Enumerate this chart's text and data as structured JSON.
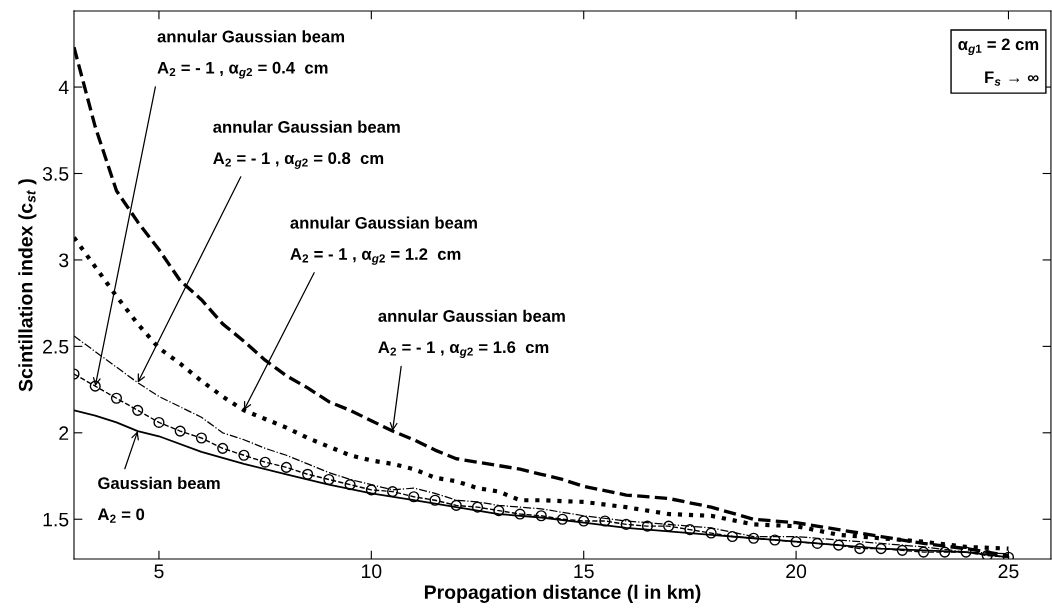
{
  "chart_data": {
    "type": "line",
    "xlabel": "Propagation distance (l in km)",
    "ylabel": "Scintillation index (c$_{st}$ )",
    "xlim": [
      3,
      26
    ],
    "ylim": [
      1.27,
      4.44
    ],
    "xticks": [
      5,
      10,
      15,
      20,
      25
    ],
    "yticks": [
      1.5,
      2,
      2.5,
      3,
      3.5,
      4
    ],
    "grid": false,
    "series": [
      {
        "color": "#000000",
        "line_style": "solid",
        "marker": "none",
        "x": [
          3,
          3.5,
          4,
          4.5,
          5,
          6,
          7,
          8,
          9,
          10,
          11,
          12,
          13,
          14,
          15,
          16,
          17,
          18,
          19,
          20,
          21,
          22,
          23,
          24,
          25
        ],
        "values": [
          2.13,
          2.1,
          2.06,
          2.01,
          1.98,
          1.89,
          1.82,
          1.76,
          1.7,
          1.65,
          1.61,
          1.57,
          1.53,
          1.51,
          1.48,
          1.45,
          1.43,
          1.41,
          1.39,
          1.37,
          1.35,
          1.33,
          1.32,
          1.31,
          1.28
        ]
      },
      {
        "color": "#000000",
        "line_style": "dashed",
        "marker": "circle",
        "x": [
          3,
          3.5,
          4,
          4.5,
          5,
          5.5,
          6,
          6.5,
          7,
          7.5,
          8,
          8.5,
          9,
          9.5,
          10,
          10.5,
          11,
          11.5,
          12,
          12.5,
          13,
          13.5,
          14,
          14.5,
          15,
          15.5,
          16,
          16.5,
          17,
          17.5,
          18,
          18.5,
          19,
          19.5,
          20,
          20.5,
          21,
          21.5,
          22,
          22.5,
          23,
          23.5,
          24,
          24.5,
          25
        ],
        "values": [
          2.34,
          2.27,
          2.2,
          2.13,
          2.06,
          2.01,
          1.97,
          1.91,
          1.87,
          1.83,
          1.8,
          1.76,
          1.73,
          1.7,
          1.67,
          1.66,
          1.63,
          1.61,
          1.58,
          1.57,
          1.55,
          1.53,
          1.52,
          1.5,
          1.49,
          1.49,
          1.47,
          1.46,
          1.46,
          1.44,
          1.42,
          1.4,
          1.39,
          1.38,
          1.37,
          1.36,
          1.35,
          1.33,
          1.33,
          1.32,
          1.31,
          1.31,
          1.31,
          1.29,
          1.28
        ]
      },
      {
        "color": "#000000",
        "line_style": "dashdot",
        "marker": "none",
        "x": [
          3,
          3.5,
          4,
          4.5,
          5,
          5.5,
          6,
          6.5,
          7,
          7.5,
          8,
          8.5,
          9,
          9.5,
          10,
          10.5,
          11,
          11.5,
          12,
          12.5,
          13,
          13.5,
          14,
          15,
          16,
          17,
          18,
          19,
          20,
          21,
          22,
          23,
          24,
          25
        ],
        "values": [
          2.56,
          2.47,
          2.38,
          2.29,
          2.21,
          2.15,
          2.09,
          2.0,
          1.96,
          1.91,
          1.87,
          1.82,
          1.77,
          1.73,
          1.7,
          1.67,
          1.68,
          1.65,
          1.61,
          1.6,
          1.58,
          1.57,
          1.56,
          1.52,
          1.49,
          1.47,
          1.45,
          1.4,
          1.4,
          1.38,
          1.36,
          1.34,
          1.31,
          1.3
        ]
      },
      {
        "color": "#000000",
        "line_style": "dotted",
        "marker": "none",
        "x": [
          3,
          3.5,
          4,
          4.5,
          5,
          5.5,
          6,
          6.5,
          7,
          7.5,
          8,
          8.5,
          9,
          9.5,
          10,
          10.5,
          11,
          11.5,
          12,
          12.5,
          13,
          13.5,
          14,
          15,
          16,
          17,
          18,
          19,
          20,
          21,
          22,
          23,
          24,
          25
        ],
        "values": [
          3.13,
          2.96,
          2.79,
          2.63,
          2.49,
          2.4,
          2.3,
          2.21,
          2.13,
          2.08,
          2.03,
          1.97,
          1.92,
          1.87,
          1.84,
          1.82,
          1.79,
          1.74,
          1.72,
          1.68,
          1.66,
          1.61,
          1.61,
          1.6,
          1.57,
          1.53,
          1.52,
          1.47,
          1.46,
          1.41,
          1.39,
          1.37,
          1.34,
          1.33
        ]
      },
      {
        "color": "#000000",
        "line_style": "dashed",
        "marker": "none",
        "x": [
          3,
          3.5,
          4,
          4.5,
          5,
          5.5,
          6,
          6.5,
          7,
          7.5,
          8,
          8.5,
          9,
          9.5,
          10,
          10.5,
          11,
          11.5,
          12,
          12.5,
          13,
          13.5,
          14,
          14.5,
          15,
          16,
          17,
          18,
          19,
          20,
          21,
          22,
          23,
          24,
          25
        ],
        "values": [
          4.23,
          3.77,
          3.4,
          3.22,
          3.06,
          2.88,
          2.77,
          2.63,
          2.53,
          2.42,
          2.33,
          2.26,
          2.18,
          2.13,
          2.07,
          2.01,
          1.96,
          1.9,
          1.85,
          1.83,
          1.81,
          1.79,
          1.76,
          1.73,
          1.69,
          1.64,
          1.62,
          1.57,
          1.5,
          1.48,
          1.44,
          1.4,
          1.36,
          1.33,
          1.29
        ]
      }
    ],
    "annotations": [
      {
        "text": "annular Gaussian beam\nA$_{2}$ = - 1 , α$_{g2}$ = 0.4  cm",
        "x": 3.5,
        "y": 2.27
      },
      {
        "text": "annular Gaussian beam\nA$_{2}$ = - 1 , α$_{g2}$ = 0.8  cm",
        "x": 4.5,
        "y": 2.29
      },
      {
        "text": "annular Gaussian beam\nA$_{2}$ = - 1 , α$_{g2}$ = 1.2  cm",
        "x": 7,
        "y": 2.13
      },
      {
        "text": "annular Gaussian beam\nA$_{2}$ = - 1 , α$_{g2}$ = 1.6  cm",
        "x": 10.5,
        "y": 2.01
      },
      {
        "text": "Gaussian beam\nA$_{2}$ = 0",
        "x": 4.5,
        "y": 2.01
      },
      "α$_{g1}$ = 2 cm\nF$_{s}$ → ∞"
    ]
  }
}
